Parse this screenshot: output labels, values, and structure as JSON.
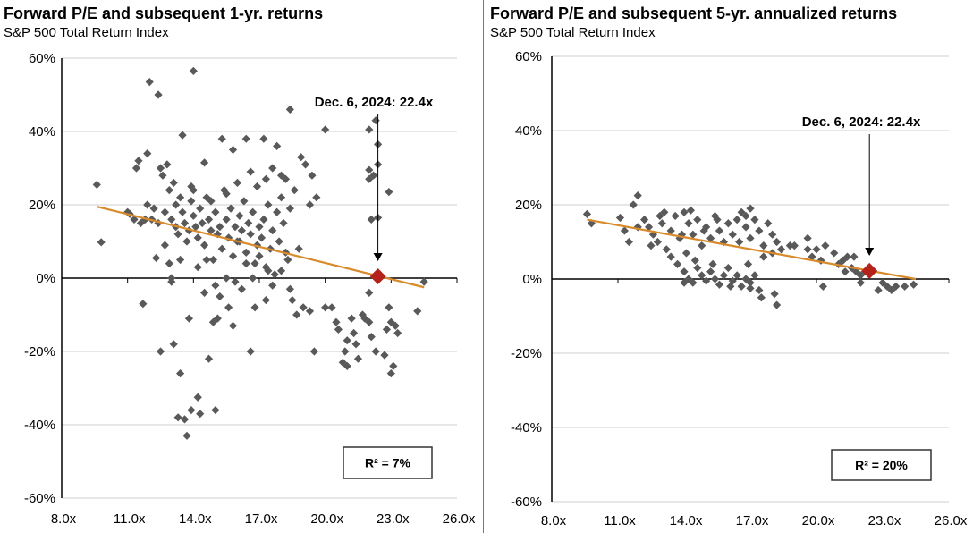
{
  "colors": {
    "marker": "#595959",
    "trendline": "#D98A2B",
    "highlight": "#B5221B",
    "grid": "#CFCFCF"
  },
  "chart_data": [
    {
      "type": "scatter",
      "title": "Forward P/E and subsequent 1-yr. returns",
      "subtitle": "S&P 500 Total Return Index",
      "xlim": [
        8,
        26
      ],
      "ylim": [
        -60,
        60
      ],
      "x_ticks": [
        "8.0x",
        "11.0x",
        "14.0x",
        "17.0x",
        "20.0x",
        "23.0x",
        "26.0x"
      ],
      "y_ticks": [
        "60%",
        "40%",
        "20%",
        "0%",
        "-20%",
        "-40%",
        "-60%"
      ],
      "grid": "horizontal",
      "annotation": "Dec. 6, 2024: 22.4x",
      "current": [
        22.4,
        0.5
      ],
      "trendline": [
        [
          9.6,
          19.5
        ],
        [
          24.5,
          -2.5
        ]
      ],
      "r_squared": "R²  = 7%",
      "points": [
        [
          9.6,
          25.5
        ],
        [
          9.8,
          9.8
        ],
        [
          11.1,
          17.5
        ],
        [
          11.4,
          30
        ],
        [
          11.7,
          -7
        ],
        [
          11.8,
          16
        ],
        [
          12.0,
          53.5
        ],
        [
          12.2,
          19
        ],
        [
          12.3,
          5.5
        ],
        [
          12.4,
          50
        ],
        [
          12.5,
          -20
        ],
        [
          12.6,
          28
        ],
        [
          12.7,
          9
        ],
        [
          12.9,
          24
        ],
        [
          13.0,
          0
        ],
        [
          13.1,
          -18
        ],
        [
          13.3,
          -38
        ],
        [
          13.4,
          -26
        ],
        [
          13.5,
          39
        ],
        [
          13.6,
          -38.5
        ],
        [
          13.7,
          -43
        ],
        [
          13.8,
          -11
        ],
        [
          13.9,
          -36
        ],
        [
          14.0,
          56.5
        ],
        [
          14.2,
          -32.5
        ],
        [
          14.3,
          -37
        ],
        [
          14.5,
          31.5
        ],
        [
          14.7,
          -22
        ],
        [
          15.0,
          -36
        ],
        [
          20.0,
          -8
        ],
        [
          20.3,
          -8
        ],
        [
          20.5,
          -12
        ],
        [
          20.6,
          -14
        ],
        [
          20.8,
          -23
        ],
        [
          21.0,
          -24
        ],
        [
          21.2,
          -11
        ],
        [
          21.3,
          -15
        ],
        [
          21.4,
          -18
        ],
        [
          21.5,
          -22
        ],
        [
          21.7,
          -10
        ],
        [
          21.8,
          -11
        ],
        [
          22.0,
          -12
        ],
        [
          22.1,
          -16
        ],
        [
          22.3,
          -20
        ],
        [
          22.0,
          -4
        ],
        [
          22.9,
          -8
        ],
        [
          22.7,
          -21
        ],
        [
          23.0,
          -26
        ],
        [
          23.1,
          -24
        ],
        [
          23.2,
          -13
        ],
        [
          23.3,
          -15
        ],
        [
          24.2,
          -9
        ],
        [
          24.5,
          -1
        ],
        [
          23.0,
          -12
        ],
        [
          22.8,
          -14
        ],
        [
          21.0,
          -17
        ],
        [
          20.9,
          -20
        ],
        [
          22.3,
          43
        ],
        [
          22.0,
          40.5
        ],
        [
          22.4,
          36.5
        ],
        [
          22.4,
          31
        ],
        [
          22.0,
          29.5
        ],
        [
          22.2,
          28
        ],
        [
          22.0,
          27
        ],
        [
          22.9,
          23.5
        ],
        [
          22.1,
          16
        ],
        [
          22.4,
          16.5
        ],
        [
          18.4,
          46
        ],
        [
          20.0,
          40.5
        ],
        [
          13.0,
          16
        ],
        [
          13.2,
          14
        ],
        [
          13.3,
          12
        ],
        [
          13.5,
          18
        ],
        [
          13.6,
          15
        ],
        [
          13.7,
          10
        ],
        [
          13.8,
          13
        ],
        [
          13.9,
          21
        ],
        [
          14.0,
          17
        ],
        [
          14.1,
          14
        ],
        [
          14.2,
          11
        ],
        [
          14.3,
          19
        ],
        [
          14.4,
          15
        ],
        [
          14.5,
          9
        ],
        [
          14.6,
          22
        ],
        [
          14.7,
          16
        ],
        [
          14.8,
          13
        ],
        [
          14.9,
          5
        ],
        [
          15.0,
          18
        ],
        [
          15.1,
          12
        ],
        [
          15.2,
          14
        ],
        [
          15.3,
          8
        ],
        [
          15.4,
          24
        ],
        [
          15.5,
          16
        ],
        [
          15.6,
          11
        ],
        [
          15.7,
          19
        ],
        [
          15.8,
          6
        ],
        [
          15.9,
          14
        ],
        [
          16.0,
          10
        ],
        [
          16.1,
          17
        ],
        [
          16.2,
          13
        ],
        [
          16.3,
          21
        ],
        [
          16.4,
          7
        ],
        [
          16.5,
          15
        ],
        [
          16.6,
          12
        ],
        [
          16.7,
          18
        ],
        [
          16.8,
          4
        ],
        [
          16.9,
          9
        ],
        [
          17.0,
          14
        ],
        [
          17.1,
          11
        ],
        [
          17.2,
          16
        ],
        [
          17.3,
          3
        ],
        [
          17.4,
          20
        ],
        [
          17.5,
          8
        ],
        [
          17.6,
          13
        ],
        [
          17.7,
          1
        ],
        [
          17.8,
          18
        ],
        [
          17.9,
          10
        ],
        [
          18.0,
          22
        ],
        [
          18.1,
          15
        ],
        [
          18.2,
          7
        ],
        [
          18.3,
          5
        ],
        [
          18.4,
          19
        ],
        [
          18.0,
          28
        ],
        [
          17.6,
          30
        ],
        [
          17.2,
          38
        ],
        [
          16.4,
          38
        ],
        [
          15.3,
          38
        ],
        [
          15.8,
          35
        ],
        [
          16.0,
          26
        ],
        [
          16.9,
          25
        ],
        [
          17.8,
          36
        ],
        [
          18.2,
          27
        ],
        [
          18.6,
          24
        ],
        [
          19.1,
          31
        ],
        [
          19.4,
          28
        ],
        [
          19.6,
          22
        ],
        [
          19.3,
          20
        ],
        [
          18.9,
          33
        ],
        [
          14.8,
          21
        ],
        [
          15.5,
          23
        ],
        [
          16.6,
          29
        ],
        [
          17.3,
          27
        ],
        [
          14.0,
          24
        ],
        [
          13.4,
          22
        ],
        [
          13.1,
          26
        ],
        [
          12.7,
          18
        ],
        [
          12.4,
          15
        ],
        [
          12.1,
          16
        ],
        [
          11.9,
          20
        ],
        [
          11.6,
          15
        ],
        [
          11.3,
          16
        ],
        [
          11.0,
          18
        ],
        [
          11.5,
          32
        ],
        [
          11.9,
          34
        ],
        [
          12.5,
          30
        ],
        [
          12.8,
          31
        ],
        [
          13.2,
          20
        ],
        [
          13.9,
          25
        ],
        [
          14.6,
          5
        ],
        [
          15.0,
          -2
        ],
        [
          15.2,
          -5
        ],
        [
          15.5,
          0
        ],
        [
          15.9,
          -1
        ],
        [
          16.2,
          -3
        ],
        [
          16.8,
          -8
        ],
        [
          17.3,
          -6
        ],
        [
          17.6,
          -2
        ],
        [
          18.0,
          2
        ],
        [
          18.4,
          -3
        ],
        [
          18.5,
          -6
        ],
        [
          18.7,
          -10
        ],
        [
          19.0,
          -8
        ],
        [
          19.3,
          -9
        ],
        [
          14.2,
          3
        ],
        [
          14.5,
          -4
        ],
        [
          15.8,
          -13
        ],
        [
          15.6,
          -8
        ],
        [
          13.4,
          5
        ],
        [
          12.9,
          4
        ],
        [
          13.0,
          -1
        ],
        [
          16.1,
          10
        ],
        [
          16.4,
          4
        ],
        [
          16.7,
          0
        ],
        [
          17.0,
          6
        ],
        [
          17.4,
          2
        ],
        [
          18.8,
          8
        ],
        [
          15.1,
          -11
        ],
        [
          14.9,
          -12
        ],
        [
          16.6,
          -20
        ],
        [
          19.5,
          -20
        ]
      ]
    },
    {
      "type": "scatter",
      "title": "Forward P/E and subsequent 5-yr. annualized returns",
      "subtitle": "S&P 500 Total Return Index",
      "xlim": [
        8,
        26
      ],
      "ylim": [
        -60,
        60
      ],
      "x_ticks": [
        "8.0x",
        "11.0x",
        "14.0x",
        "17.0x",
        "20.0x",
        "23.0x",
        "26.0x"
      ],
      "y_ticks": [
        "60%",
        "40%",
        "20%",
        "0%",
        "-20%",
        "-40%",
        "-60%"
      ],
      "grid": "horizontal",
      "annotation": "Dec. 6, 2024: 22.4x",
      "current": [
        22.4,
        2.2
      ],
      "trendline": [
        [
          9.6,
          16
        ],
        [
          24.5,
          0
        ]
      ],
      "r_squared": "R²  = 20%",
      "points": [
        [
          9.6,
          17.5
        ],
        [
          9.8,
          15
        ],
        [
          11.1,
          16.5
        ],
        [
          11.3,
          13
        ],
        [
          11.5,
          10
        ],
        [
          11.7,
          20
        ],
        [
          11.9,
          22.5
        ],
        [
          12.2,
          16
        ],
        [
          12.4,
          14
        ],
        [
          12.6,
          12
        ],
        [
          12.8,
          10
        ],
        [
          13.0,
          15
        ],
        [
          13.2,
          8
        ],
        [
          13.4,
          13
        ],
        [
          13.6,
          17
        ],
        [
          13.8,
          11
        ],
        [
          14.0,
          18
        ],
        [
          14.2,
          15
        ],
        [
          14.4,
          12
        ],
        [
          14.6,
          16
        ],
        [
          14.8,
          9
        ],
        [
          15.0,
          14
        ],
        [
          15.2,
          11
        ],
        [
          15.4,
          17
        ],
        [
          15.6,
          13
        ],
        [
          15.8,
          10
        ],
        [
          16.0,
          15
        ],
        [
          16.2,
          12
        ],
        [
          16.4,
          16
        ],
        [
          16.6,
          18
        ],
        [
          16.8,
          14
        ],
        [
          17.0,
          11
        ],
        [
          17.2,
          16
        ],
        [
          17.4,
          13
        ],
        [
          17.6,
          9
        ],
        [
          17.8,
          15
        ],
        [
          18.0,
          12
        ],
        [
          18.2,
          10
        ],
        [
          17.0,
          19
        ],
        [
          16.8,
          17
        ],
        [
          16.5,
          10
        ],
        [
          15.5,
          16
        ],
        [
          14.9,
          13
        ],
        [
          14.3,
          18.5
        ],
        [
          13.9,
          12
        ],
        [
          13.1,
          18
        ],
        [
          12.5,
          9
        ],
        [
          11.9,
          14
        ],
        [
          12.9,
          17
        ],
        [
          13.4,
          6
        ],
        [
          13.7,
          4
        ],
        [
          14.0,
          2
        ],
        [
          14.2,
          0
        ],
        [
          14.4,
          -1
        ],
        [
          14.6,
          3
        ],
        [
          14.8,
          1
        ],
        [
          15.0,
          -0.5
        ],
        [
          15.2,
          2
        ],
        [
          15.4,
          0
        ],
        [
          15.6,
          -1.5
        ],
        [
          15.8,
          1
        ],
        [
          16.0,
          3
        ],
        [
          16.2,
          -0.5
        ],
        [
          16.4,
          1
        ],
        [
          16.6,
          -2
        ],
        [
          16.8,
          0
        ],
        [
          17.0,
          -1
        ],
        [
          17.2,
          1
        ],
        [
          17.4,
          -3
        ],
        [
          17.5,
          -5
        ],
        [
          18.1,
          -4
        ],
        [
          18.2,
          -7
        ],
        [
          17.0,
          -2.5
        ],
        [
          14.5,
          5
        ],
        [
          14.1,
          7
        ],
        [
          14.0,
          -1
        ],
        [
          15.3,
          4
        ],
        [
          16.1,
          -2
        ],
        [
          16.9,
          4
        ],
        [
          17.6,
          6
        ],
        [
          18.0,
          7
        ],
        [
          18.4,
          8
        ],
        [
          19.0,
          9
        ],
        [
          19.6,
          8
        ],
        [
          19.8,
          6
        ],
        [
          20.2,
          5
        ],
        [
          20.4,
          9
        ],
        [
          20.8,
          7
        ],
        [
          21.2,
          5
        ],
        [
          21.0,
          4
        ],
        [
          21.4,
          6
        ],
        [
          21.6,
          3
        ],
        [
          21.8,
          2
        ],
        [
          22.0,
          1
        ],
        [
          22.2,
          2
        ],
        [
          22.0,
          -1
        ],
        [
          22.8,
          -3
        ],
        [
          23.0,
          -1
        ],
        [
          23.2,
          -2
        ],
        [
          23.4,
          -3
        ],
        [
          23.6,
          -2
        ],
        [
          24.0,
          -2
        ],
        [
          24.4,
          -1.5
        ],
        [
          20.3,
          -2
        ],
        [
          21.7,
          6
        ],
        [
          18.8,
          9
        ],
        [
          19.6,
          11
        ],
        [
          20.0,
          8
        ],
        [
          21.3,
          2
        ]
      ]
    }
  ]
}
